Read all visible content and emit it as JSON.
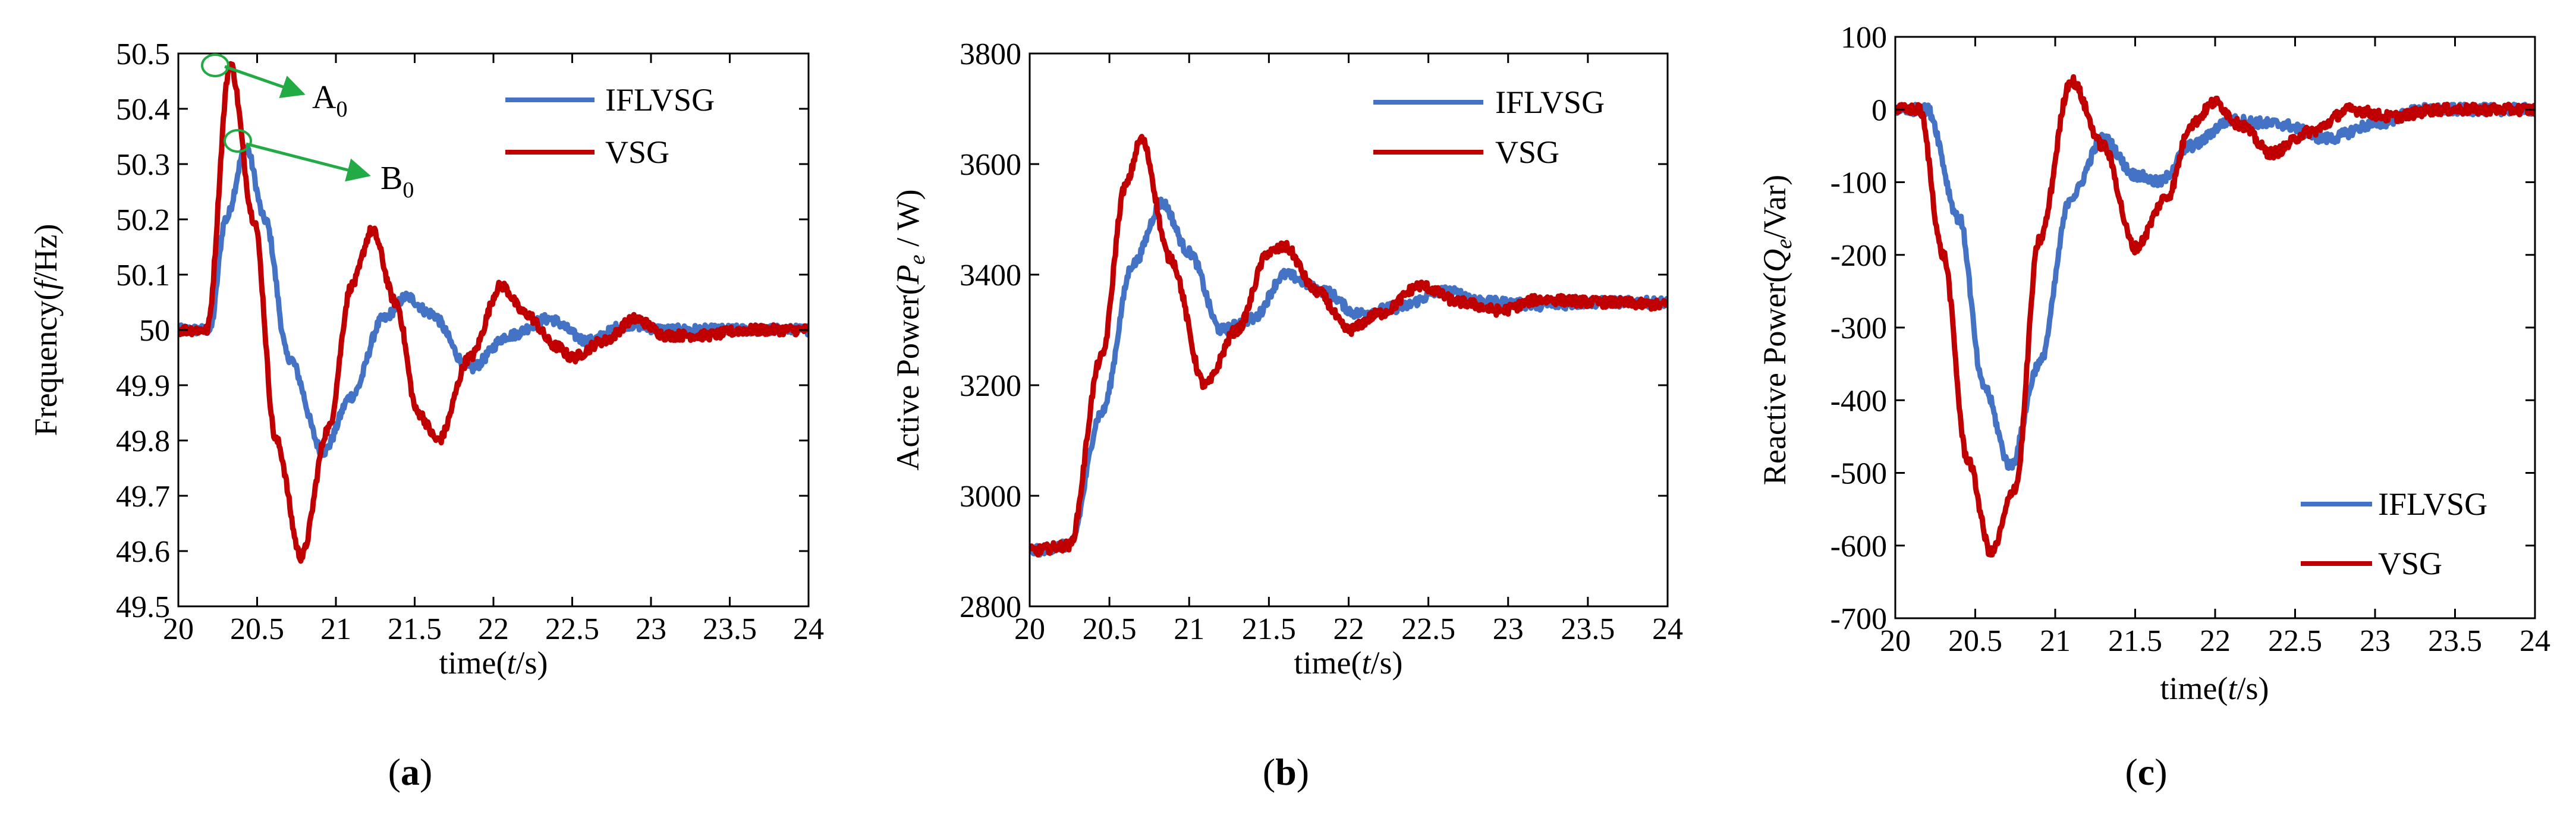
{
  "colors": {
    "ifl": "#4472c4",
    "vsg": "#c00000",
    "arrow": "#22aa44"
  },
  "panels": [
    {
      "id": "a",
      "caption_letter": "a",
      "ylabel_parts": [
        "Frequency(",
        "f",
        "/Hz)"
      ],
      "xlabel_parts": [
        "time(",
        "t",
        "/s)"
      ],
      "legend": [
        "IFLVSG",
        "VSG"
      ],
      "annotations": [
        {
          "text": "A",
          "sub": "0"
        },
        {
          "text": "B",
          "sub": "0"
        }
      ],
      "chart_data": {
        "type": "line",
        "xlim": [
          20,
          24
        ],
        "ylim": [
          49.5,
          50.5
        ],
        "xticks": [
          20,
          20.5,
          21,
          21.5,
          22,
          22.5,
          23,
          23.5,
          24
        ],
        "xtick_labels": [
          "20",
          "20.5",
          "21",
          "21.5",
          "22",
          "22.5",
          "23",
          "23.5",
          "24"
        ],
        "yticks": [
          49.5,
          49.6,
          49.7,
          49.8,
          49.9,
          50,
          50.1,
          50.2,
          50.3,
          50.4,
          50.5
        ],
        "ytick_labels": [
          "49.5",
          "49.6",
          "49.7",
          "49.8",
          "49.9",
          "50",
          "50.1",
          "50.2",
          "50.3",
          "50.4",
          "50.5"
        ],
        "series": [
          {
            "name": "IFLVSG",
            "x": [
              20,
              20.2,
              20.3,
              20.43,
              20.55,
              20.7,
              20.92,
              21.1,
              21.3,
              21.45,
              21.6,
              21.85,
              22.1,
              22.35,
              22.6,
              22.85,
              23.1,
              23.4,
              23.7,
              24
            ],
            "y": [
              50,
              50,
              50.2,
              50.33,
              50.2,
              49.95,
              49.78,
              49.88,
              50.02,
              50.06,
              50.03,
              49.93,
              49.99,
              50.02,
              49.98,
              50.01,
              50.0,
              50.0,
              50.0,
              50.0
            ]
          },
          {
            "name": "VSG",
            "x": [
              20,
              20.18,
              20.33,
              20.48,
              20.62,
              20.78,
              20.95,
              21.1,
              21.23,
              21.38,
              21.52,
              21.65,
              21.85,
              22.05,
              22.2,
              22.4,
              22.5,
              22.7,
              22.9,
              23.1,
              23.35,
              23.6,
              24
            ],
            "y": [
              50,
              50,
              50.48,
              50.2,
              49.8,
              49.59,
              49.82,
              50.08,
              50.18,
              50.05,
              49.85,
              49.8,
              49.95,
              50.08,
              50.03,
              49.97,
              49.95,
              49.98,
              50.02,
              49.99,
              49.99,
              50.0,
              50.0
            ]
          }
        ]
      }
    },
    {
      "id": "b",
      "caption_letter": "b",
      "ylabel_parts": [
        "Active Power(",
        "P",
        "e",
        " / W)"
      ],
      "xlabel_parts": [
        "time(",
        "t",
        "/s)"
      ],
      "legend": [
        "IFLVSG",
        "VSG"
      ],
      "chart_data": {
        "type": "line",
        "xlim": [
          20,
          24
        ],
        "ylim": [
          2800,
          3800
        ],
        "xticks": [
          20,
          20.5,
          21,
          21.5,
          22,
          22.5,
          23,
          23.5,
          24
        ],
        "xtick_labels": [
          "20",
          "20.5",
          "21",
          "21.5",
          "22",
          "22.5",
          "23",
          "23.5",
          "24"
        ],
        "yticks": [
          2800,
          3000,
          3200,
          3400,
          3600,
          3800
        ],
        "ytick_labels": [
          "2800",
          "3000",
          "3200",
          "3400",
          "3600",
          "3800"
        ],
        "series": [
          {
            "name": "IFLVSG",
            "x": [
              20,
              20.25,
              20.45,
              20.65,
              20.83,
              21.0,
              21.2,
              21.4,
              21.6,
              21.85,
              22.05,
              22.3,
              22.6,
              22.9,
              23.2,
              23.6,
              24
            ],
            "y": [
              2900,
              2910,
              3150,
              3420,
              3530,
              3440,
              3300,
              3320,
              3400,
              3370,
              3330,
              3340,
              3370,
              3350,
              3345,
              3350,
              3350
            ]
          },
          {
            "name": "VSG",
            "x": [
              20,
              20.25,
              20.45,
              20.6,
              20.7,
              20.88,
              21.1,
              21.3,
              21.5,
              21.6,
              21.8,
              22.0,
              22.2,
              22.45,
              22.7,
              22.95,
              23.2,
              23.6,
              24
            ],
            "y": [
              2900,
              2910,
              3250,
              3560,
              3645,
              3430,
              3200,
              3300,
              3440,
              3450,
              3370,
              3300,
              3330,
              3380,
              3350,
              3335,
              3355,
              3350,
              3345
            ]
          }
        ]
      }
    },
    {
      "id": "c",
      "caption_letter": "c",
      "ylabel_parts": [
        "Reactive Power(",
        "Q",
        "e",
        "/Var)"
      ],
      "xlabel_parts": [
        "time(",
        "t",
        "/s)"
      ],
      "legend": [
        "IFLVSG",
        "VSG"
      ],
      "chart_data": {
        "type": "line",
        "xlim": [
          20,
          24
        ],
        "ylim": [
          -700,
          100
        ],
        "xticks": [
          20,
          20.5,
          21,
          21.5,
          22,
          22.5,
          23,
          23.5,
          24
        ],
        "xtick_labels": [
          "20",
          "20.5",
          "21",
          "21.5",
          "22",
          "22.5",
          "23",
          "23.5",
          "24"
        ],
        "yticks": [
          -700,
          -600,
          -500,
          -400,
          -300,
          -200,
          -100,
          0,
          100
        ],
        "ytick_labels": [
          "-700",
          "-600",
          "-500",
          "-400",
          "-300",
          "-200",
          "-100",
          "0",
          "100"
        ],
        "series": [
          {
            "name": "IFLVSG",
            "x": [
              20,
              20.2,
              20.4,
              20.55,
              20.72,
              20.9,
              21.1,
              21.3,
              21.5,
              21.65,
              21.85,
              22.1,
              22.4,
              22.7,
              23.0,
              23.3,
              23.6,
              24
            ],
            "y": [
              0,
              0,
              -150,
              -380,
              -490,
              -350,
              -120,
              -40,
              -90,
              -100,
              -50,
              -15,
              -20,
              -40,
              -20,
              0,
              0,
              0
            ]
          },
          {
            "name": "VSG",
            "x": [
              20,
              20.15,
              20.3,
              20.45,
              20.6,
              20.75,
              20.9,
              21.1,
              21.3,
              21.5,
              21.7,
              21.85,
              22.0,
              22.15,
              22.35,
              22.6,
              22.85,
              23.1,
              23.4,
              23.7,
              24
            ],
            "y": [
              0,
              0,
              -200,
              -480,
              -610,
              -520,
              -180,
              40,
              -50,
              -190,
              -120,
              -20,
              10,
              -20,
              -60,
              -30,
              0,
              -10,
              0,
              0,
              0
            ]
          }
        ]
      }
    }
  ]
}
